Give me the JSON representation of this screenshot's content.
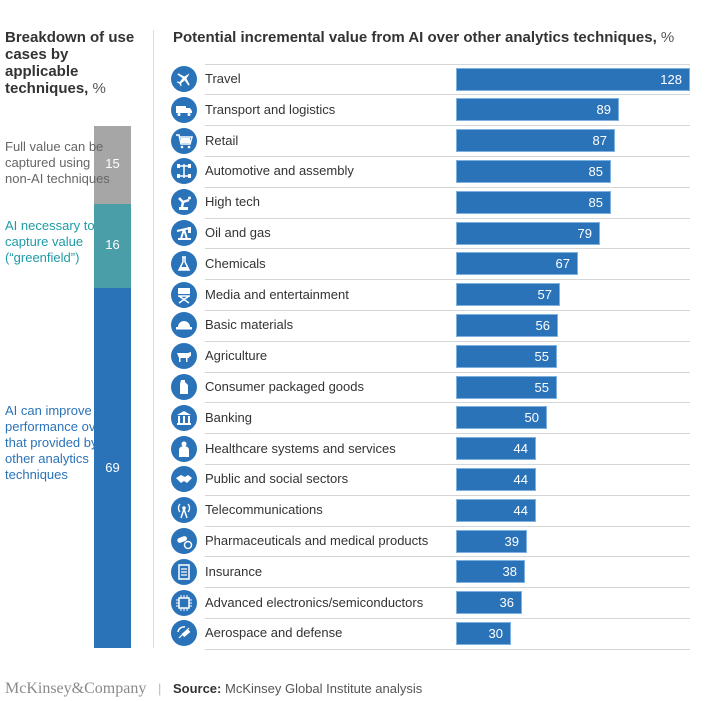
{
  "left_panel": {
    "title": "Breakdown of use cases by applicable techniques,",
    "unit": "%",
    "segments": [
      {
        "label": "Full value can be captured using non-AI techniques",
        "value": 15,
        "color": "#a6a6a6",
        "label_color": "#666666"
      },
      {
        "label": "AI necessary to capture value (“greenfield”)",
        "value": 16,
        "color": "#4a9ea8",
        "label_color": "#1f9ba6"
      },
      {
        "label": "AI can improve performance over that provided by other analytics techniques",
        "value": 69,
        "color": "#2b73b9",
        "label_color": "#2b73b9"
      }
    ]
  },
  "chart_data": {
    "type": "bar",
    "orientation": "horizontal",
    "title": "Potential incremental value from AI over other analytics techniques,",
    "unit": "%",
    "xlabel": "",
    "ylabel": "",
    "xlim": [
      0,
      128
    ],
    "bar_color": "#2b73b9",
    "grid": false,
    "categories": [
      "Travel",
      "Transport and logistics",
      "Retail",
      "Automotive and assembly",
      "High tech",
      "Oil and gas",
      "Chemicals",
      "Media and entertainment",
      "Basic materials",
      "Agriculture",
      "Consumer packaged goods",
      "Banking",
      "Healthcare systems and services",
      "Public and social sectors",
      "Telecommunications",
      "Pharmaceuticals and medical products",
      "Insurance",
      "Advanced electronics/semiconductors",
      "Aerospace and defense"
    ],
    "values": [
      128,
      89,
      87,
      85,
      85,
      79,
      67,
      57,
      56,
      55,
      55,
      50,
      44,
      44,
      44,
      39,
      38,
      36,
      30
    ],
    "icons": [
      "airplane-icon",
      "truck-icon",
      "shopping-cart-icon",
      "car-chassis-icon",
      "robot-arm-icon",
      "oil-pump-icon",
      "flask-icon",
      "directors-chair-icon",
      "hard-hat-icon",
      "cow-icon",
      "jug-icon",
      "bank-icon",
      "doctor-icon",
      "handshake-icon",
      "antenna-icon",
      "pills-icon",
      "document-icon",
      "microchip-icon",
      "satellite-icon"
    ]
  },
  "footer": {
    "brand": "McKinsey&Company",
    "source_label": "Source:",
    "source_text": "McKinsey Global Institute analysis"
  }
}
